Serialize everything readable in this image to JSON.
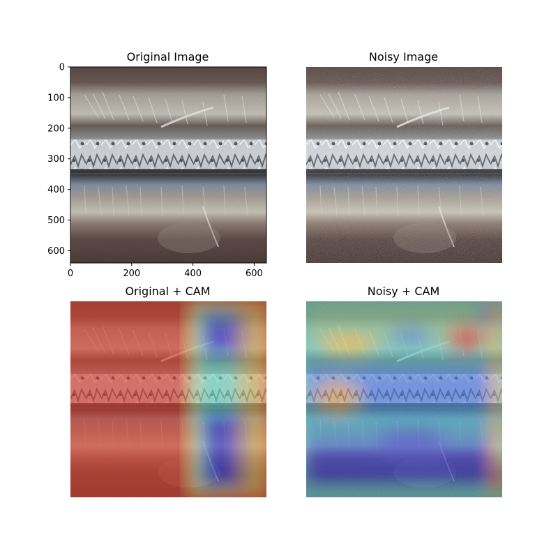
{
  "panels": {
    "top_left_title": "Original Image",
    "top_right_title": "Noisy Image",
    "bottom_left_title": "Original + CAM",
    "bottom_right_title": "Noisy + CAM"
  },
  "chart_data": {
    "type": "image_grid",
    "xlim": [
      0,
      640
    ],
    "ylim": [
      640,
      0
    ],
    "x_ticks": [
      0,
      200,
      400,
      600
    ],
    "y_ticks": [
      0,
      100,
      200,
      300,
      400,
      500,
      600
    ],
    "axes_visible_on": "Original Image",
    "colors": {
      "steel_dark": "#5e4e4b",
      "weld_bright": "#d8dcdf",
      "cam_hot": "#d63c2c",
      "cam_cold": "#2a2fd0",
      "cam_mid": "#6ad6c0"
    }
  }
}
